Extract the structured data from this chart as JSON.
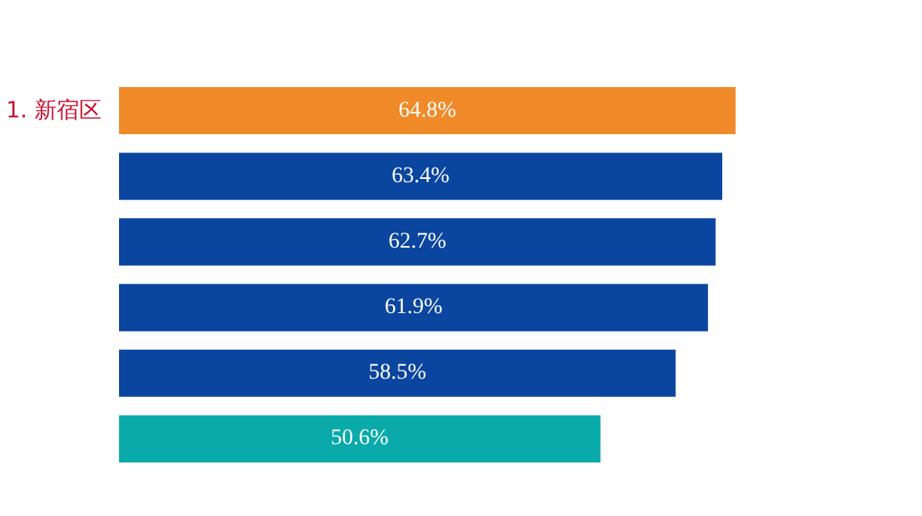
{
  "chart_data": {
    "type": "bar",
    "orientation": "horizontal",
    "categories": [
      "1. 新宿区",
      null,
      null,
      null,
      null,
      null
    ],
    "values": [
      64.8,
      63.4,
      62.7,
      61.9,
      58.5,
      50.6
    ],
    "value_labels": [
      "64.8%",
      "63.4%",
      "62.7%",
      "61.9%",
      "58.5%",
      "50.6%"
    ],
    "colors": [
      "#f08a28",
      "#0a45a0",
      "#0a45a0",
      "#0a45a0",
      "#0a45a0",
      "#0aaaaa"
    ]
  }
}
